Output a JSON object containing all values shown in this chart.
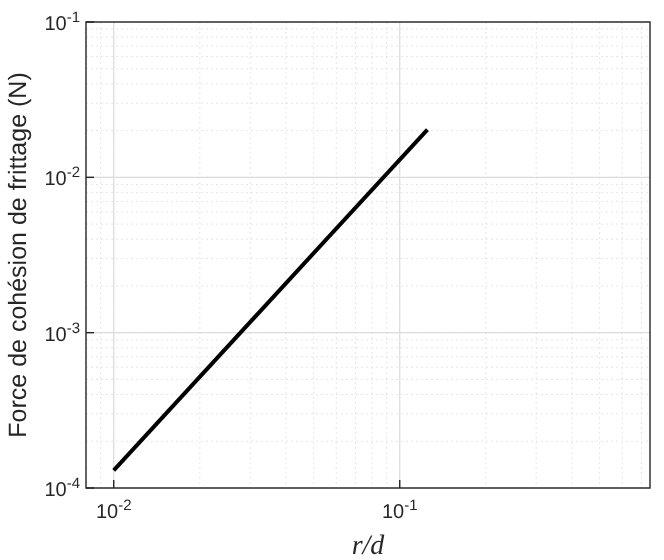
{
  "chart_data": {
    "type": "line",
    "xlabel": "r/d",
    "ylabel": "Force de cohésion de frittage (N)",
    "log": "xy",
    "grid": true,
    "marker": "none",
    "line_style": "solid",
    "xlim": [
      0.008,
      0.75
    ],
    "ylim": [
      0.0001,
      0.1
    ],
    "xticks": [
      {
        "value": 0.01,
        "label": "10$^{-2}$"
      },
      {
        "value": 0.1,
        "label": "10$^{-1}$"
      }
    ],
    "yticks": [
      {
        "value": 0.0001,
        "label": "10$^{-4}$"
      },
      {
        "value": 0.001,
        "label": "10$^{-3}$"
      },
      {
        "value": 0.01,
        "label": "10$^{-2}$"
      },
      {
        "value": 0.1,
        "label": "10$^{-1}$"
      }
    ],
    "series": [
      {
        "color": "#000000",
        "x": [
          0.01,
          0.125
        ],
        "values": [
          0.00013,
          0.0203
        ]
      }
    ]
  }
}
